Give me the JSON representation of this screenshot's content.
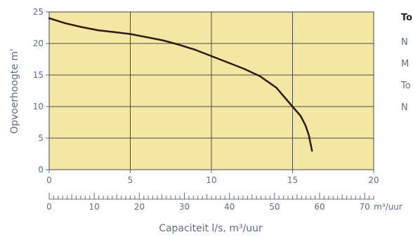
{
  "colors": {
    "plot_background": "#f2e7a3",
    "grid": "#4a4a4a",
    "curve": "#2f1a12",
    "text": "#5c6f86"
  },
  "chart_data": {
    "type": "line",
    "title": "",
    "xlabel": "Capaciteit l/s, m³/uur",
    "ylabel": "Opvoerhoogte m'",
    "xlim": [
      0,
      20
    ],
    "ylim": [
      0,
      25
    ],
    "x_ticks": [
      0,
      5,
      10,
      15,
      20
    ],
    "y_ticks": [
      0,
      5,
      10,
      15,
      20,
      25
    ],
    "grid": true,
    "secondary_x_axis": {
      "unit_label": "m³/uur",
      "ticks": [
        0,
        10,
        20,
        30,
        40,
        50,
        60,
        70
      ],
      "range": [
        0,
        72
      ]
    },
    "series": [
      {
        "x": [
          0,
          1,
          2,
          3,
          4,
          5,
          6,
          7,
          8,
          9,
          10,
          11,
          12,
          13,
          14,
          15,
          15.5,
          15.8,
          16.0,
          16.2
        ],
        "y": [
          24.0,
          23.2,
          22.6,
          22.1,
          21.8,
          21.5,
          21.0,
          20.5,
          19.8,
          19.0,
          18.0,
          17.0,
          16.0,
          14.8,
          13.0,
          10.0,
          8.5,
          7.0,
          5.5,
          3.0
        ]
      }
    ],
    "legend_partial": {
      "heading": "To",
      "lines": [
        "N",
        "M",
        "To",
        "N"
      ]
    }
  }
}
